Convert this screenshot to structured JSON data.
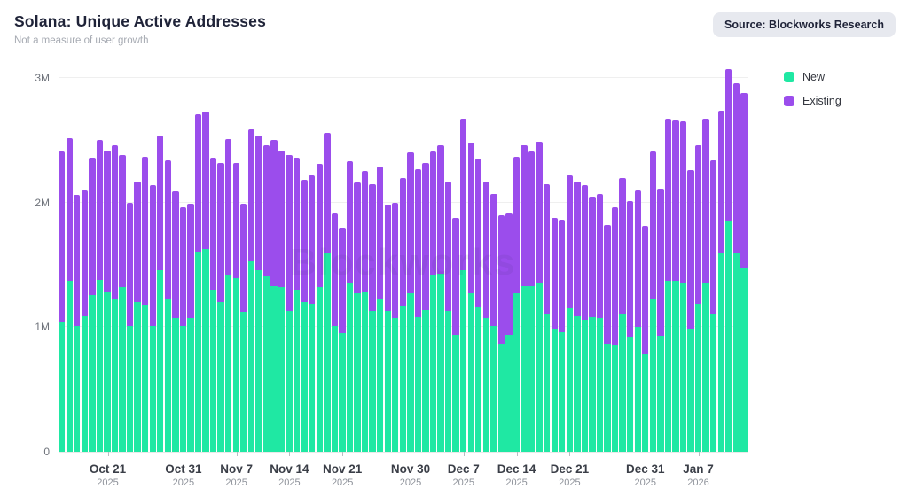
{
  "header": {
    "title": "Solana: Unique Active Addresses",
    "subtitle": "Not a measure of user growth",
    "source_badge": "Source: Blockworks Research"
  },
  "watermark": "Blockworks",
  "colors": {
    "new": "#1fe8a3",
    "existing": "#9b4dec",
    "title_text": "#1f2338",
    "badge_bg": "#e7e9ef",
    "gridline": "#efefef"
  },
  "legend": {
    "position": "right-top",
    "items": [
      {
        "label": "New",
        "color": "#1fe8a3"
      },
      {
        "label": "Existing",
        "color": "#9b4dec"
      }
    ]
  },
  "chart_data": {
    "type": "bar",
    "stacked": true,
    "title": "Solana: Unique Active Addresses",
    "subtitle": "Not a measure of user growth",
    "xlabel": "",
    "ylabel": "",
    "unit": "millions of addresses",
    "ylim": [
      0,
      3.085
    ],
    "grid": "horizontal",
    "y_ticks": [
      {
        "label": "0",
        "value": 0
      },
      {
        "label": "1M",
        "value": 1
      },
      {
        "label": "2M",
        "value": 2
      },
      {
        "label": "3M",
        "value": 3
      }
    ],
    "x_ticks": [
      {
        "label": "Oct 21",
        "year": "2025",
        "index": 6
      },
      {
        "label": "Oct 31",
        "year": "2025",
        "index": 16
      },
      {
        "label": "Nov 7",
        "year": "2025",
        "index": 23
      },
      {
        "label": "Nov 14",
        "year": "2025",
        "index": 30
      },
      {
        "label": "Nov 21",
        "year": "2025",
        "index": 37
      },
      {
        "label": "Nov 30",
        "year": "2025",
        "index": 46
      },
      {
        "label": "Dec 7",
        "year": "2025",
        "index": 53
      },
      {
        "label": "Dec 14",
        "year": "2025",
        "index": 60
      },
      {
        "label": "Dec 21",
        "year": "2025",
        "index": 67
      },
      {
        "label": "Dec 31",
        "year": "2025",
        "index": 77
      },
      {
        "label": "Jan 7",
        "year": "2026",
        "index": 84
      }
    ],
    "x": [
      "2025-10-15",
      "2025-10-16",
      "2025-10-17",
      "2025-10-18",
      "2025-10-19",
      "2025-10-20",
      "2025-10-21",
      "2025-10-22",
      "2025-10-23",
      "2025-10-24",
      "2025-10-25",
      "2025-10-26",
      "2025-10-27",
      "2025-10-28",
      "2025-10-29",
      "2025-10-30",
      "2025-10-31",
      "2025-11-01",
      "2025-11-02",
      "2025-11-03",
      "2025-11-04",
      "2025-11-05",
      "2025-11-06",
      "2025-11-07",
      "2025-11-08",
      "2025-11-09",
      "2025-11-10",
      "2025-11-11",
      "2025-11-12",
      "2025-11-13",
      "2025-11-14",
      "2025-11-15",
      "2025-11-16",
      "2025-11-17",
      "2025-11-18",
      "2025-11-19",
      "2025-11-20",
      "2025-11-21",
      "2025-11-22",
      "2025-11-23",
      "2025-11-24",
      "2025-11-25",
      "2025-11-26",
      "2025-11-27",
      "2025-11-28",
      "2025-11-29",
      "2025-11-30",
      "2025-12-01",
      "2025-12-02",
      "2025-12-03",
      "2025-12-04",
      "2025-12-05",
      "2025-12-06",
      "2025-12-07",
      "2025-12-08",
      "2025-12-09",
      "2025-12-10",
      "2025-12-11",
      "2025-12-12",
      "2025-12-13",
      "2025-12-14",
      "2025-12-15",
      "2025-12-16",
      "2025-12-17",
      "2025-12-18",
      "2025-12-19",
      "2025-12-20",
      "2025-12-21",
      "2025-12-22",
      "2025-12-23",
      "2025-12-24",
      "2025-12-25",
      "2025-12-26",
      "2025-12-27",
      "2025-12-28",
      "2025-12-29",
      "2025-12-30",
      "2025-12-31",
      "2026-01-01",
      "2026-01-02",
      "2026-01-03",
      "2026-01-04",
      "2026-01-05",
      "2026-01-06",
      "2026-01-07",
      "2026-01-08",
      "2026-01-09",
      "2026-01-10",
      "2026-01-11",
      "2026-01-12",
      "2026-01-13"
    ],
    "series": [
      {
        "name": "New",
        "values_millions": [
          1.04,
          1.37,
          1.01,
          1.09,
          1.26,
          1.38,
          1.28,
          1.22,
          1.32,
          1.01,
          1.2,
          1.18,
          1.01,
          1.46,
          1.22,
          1.07,
          1.01,
          1.07,
          1.6,
          1.63,
          1.3,
          1.2,
          1.42,
          1.39,
          1.12,
          1.53,
          1.46,
          1.41,
          1.33,
          1.32,
          1.13,
          1.3,
          1.2,
          1.19,
          1.32,
          1.59,
          1.01,
          0.95,
          1.35,
          1.27,
          1.28,
          1.13,
          1.23,
          1.13,
          1.07,
          1.17,
          1.27,
          1.08,
          1.14,
          1.42,
          1.43,
          1.13,
          0.94,
          1.46,
          1.27,
          1.16,
          1.07,
          1.01,
          0.87,
          0.94,
          1.27,
          1.33,
          1.33,
          1.35,
          1.1,
          0.99,
          0.96,
          1.15,
          1.09,
          1.06,
          1.08,
          1.07,
          0.87,
          0.85,
          1.1,
          0.92,
          1.0,
          0.78,
          1.22,
          0.93,
          1.37,
          1.37,
          1.36,
          0.99,
          1.19,
          1.36,
          1.11,
          1.59,
          1.85,
          1.59,
          1.48
        ]
      },
      {
        "name": "Existing",
        "values_millions": [
          1.37,
          1.15,
          1.05,
          1.01,
          1.1,
          1.12,
          1.14,
          1.24,
          1.06,
          0.99,
          0.97,
          1.19,
          1.13,
          1.08,
          1.12,
          1.02,
          0.95,
          0.92,
          1.11,
          1.1,
          1.06,
          1.12,
          1.09,
          0.93,
          0.87,
          1.06,
          1.08,
          1.05,
          1.17,
          1.1,
          1.25,
          1.06,
          0.98,
          1.03,
          0.99,
          0.97,
          0.9,
          0.85,
          0.98,
          0.89,
          0.97,
          1.02,
          1.06,
          0.85,
          0.93,
          1.03,
          1.13,
          1.19,
          1.18,
          0.99,
          1.03,
          1.04,
          0.94,
          1.21,
          1.21,
          1.19,
          1.1,
          1.06,
          1.03,
          0.97,
          1.1,
          1.13,
          1.08,
          1.14,
          1.05,
          0.89,
          0.9,
          1.07,
          1.08,
          1.08,
          0.97,
          1.0,
          0.95,
          1.11,
          1.1,
          1.09,
          1.1,
          1.03,
          1.19,
          1.18,
          1.3,
          1.29,
          1.29,
          1.27,
          1.27,
          1.31,
          1.23,
          1.15,
          1.22,
          1.37,
          1.4
        ]
      }
    ]
  }
}
